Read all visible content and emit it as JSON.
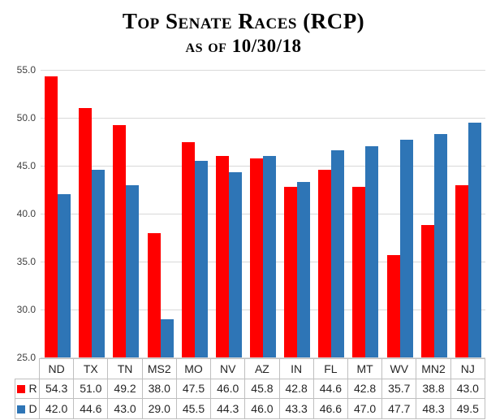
{
  "title": {
    "line1": "Top Senate Races (RCP)",
    "line2": "as of 10/30/18"
  },
  "chart_data": {
    "type": "bar",
    "title": "Top Senate Races (RCP) as of 10/30/18",
    "categories": [
      "ND",
      "TX",
      "TN",
      "MS2",
      "MO",
      "NV",
      "AZ",
      "IN",
      "FL",
      "MT",
      "WV",
      "MN2",
      "NJ"
    ],
    "series": [
      {
        "name": "R",
        "color": "#FF0000",
        "values": [
          54.3,
          51.0,
          49.2,
          38.0,
          47.5,
          46.0,
          45.8,
          42.8,
          44.6,
          42.8,
          35.7,
          38.8,
          43.0
        ]
      },
      {
        "name": "D",
        "color": "#2E75B6",
        "values": [
          42.0,
          44.6,
          43.0,
          29.0,
          45.5,
          44.3,
          46.0,
          43.3,
          46.6,
          47.0,
          47.7,
          48.3,
          49.5
        ]
      }
    ],
    "xlabel": "",
    "ylabel": "",
    "ylim": [
      25.0,
      55.0
    ],
    "ytick_step": 5.0,
    "ytick_labels": [
      "55.0",
      "50.0",
      "45.0",
      "40.0",
      "35.0",
      "30.0",
      "25.0"
    ],
    "grid": true,
    "legend_position": "data-table-left",
    "value_decimals": 1
  },
  "colors": {
    "series_r": "#FF0000",
    "series_d": "#2E75B6",
    "gridline": "#D9D9D9",
    "table_border": "#BFBFBF",
    "axis_text": "#3F3F3F",
    "table_text": "#262626",
    "title_text": "#000000",
    "background": "#FFFFFF"
  }
}
